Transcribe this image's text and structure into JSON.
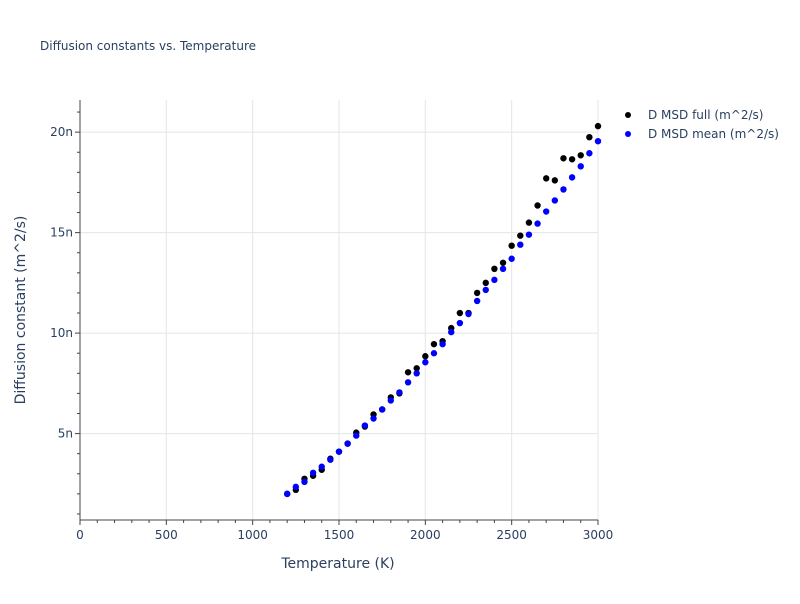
{
  "chart_data": {
    "type": "scatter",
    "title": "Diffusion constants vs. Temperature",
    "xlabel": "Temperature (K)",
    "ylabel": "Diffusion constant (m^2/s)",
    "xlim": [
      0,
      3000
    ],
    "ylim": [
      0.7,
      21.6
    ],
    "xticks": [
      0,
      500,
      1000,
      1500,
      2000,
      2500,
      3000
    ],
    "xtick_labels": [
      "0",
      "500",
      "1000",
      "1500",
      "2000",
      "2500",
      "3000"
    ],
    "yticks": [
      5,
      10,
      15,
      20
    ],
    "ytick_labels": [
      "5n",
      "10n",
      "15n",
      "20n"
    ],
    "grid": true,
    "legend_position": "top-right",
    "series": [
      {
        "name": "D MSD full (m^2/s)",
        "color": "#000000",
        "x": [
          1200,
          1250,
          1300,
          1350,
          1400,
          1450,
          1500,
          1550,
          1600,
          1650,
          1700,
          1750,
          1800,
          1850,
          1900,
          1950,
          2000,
          2050,
          2100,
          2150,
          2200,
          2250,
          2300,
          2350,
          2400,
          2450,
          2500,
          2550,
          2600,
          2650,
          2700,
          2750,
          2800,
          2850,
          2900,
          2950,
          3000
        ],
        "y": [
          2.0,
          2.2,
          2.75,
          2.9,
          3.2,
          3.75,
          4.1,
          4.5,
          5.05,
          5.35,
          5.95,
          6.2,
          6.8,
          7.0,
          8.05,
          8.25,
          8.85,
          9.45,
          9.6,
          10.25,
          11.0,
          11.0,
          12.0,
          12.5,
          13.2,
          13.5,
          14.35,
          14.85,
          15.5,
          16.35,
          17.7,
          17.6,
          18.7,
          18.65,
          18.85,
          19.75,
          20.3
        ]
      },
      {
        "name": "D MSD mean (m^2/s)",
        "color": "#0000ff",
        "x": [
          1200,
          1250,
          1300,
          1350,
          1400,
          1450,
          1500,
          1550,
          1600,
          1650,
          1700,
          1750,
          1800,
          1850,
          1900,
          1950,
          2000,
          2050,
          2100,
          2150,
          2200,
          2250,
          2300,
          2350,
          2400,
          2450,
          2500,
          2550,
          2600,
          2650,
          2700,
          2750,
          2800,
          2850,
          2900,
          2950,
          3000
        ],
        "y": [
          2.0,
          2.35,
          2.6,
          3.05,
          3.35,
          3.7,
          4.1,
          4.5,
          4.9,
          5.4,
          5.75,
          6.2,
          6.65,
          7.05,
          7.55,
          8.0,
          8.55,
          9.0,
          9.45,
          10.05,
          10.5,
          10.95,
          11.6,
          12.15,
          12.65,
          13.2,
          13.7,
          14.4,
          14.9,
          15.45,
          16.05,
          16.6,
          17.15,
          17.75,
          18.3,
          18.95,
          19.55
        ]
      }
    ]
  }
}
